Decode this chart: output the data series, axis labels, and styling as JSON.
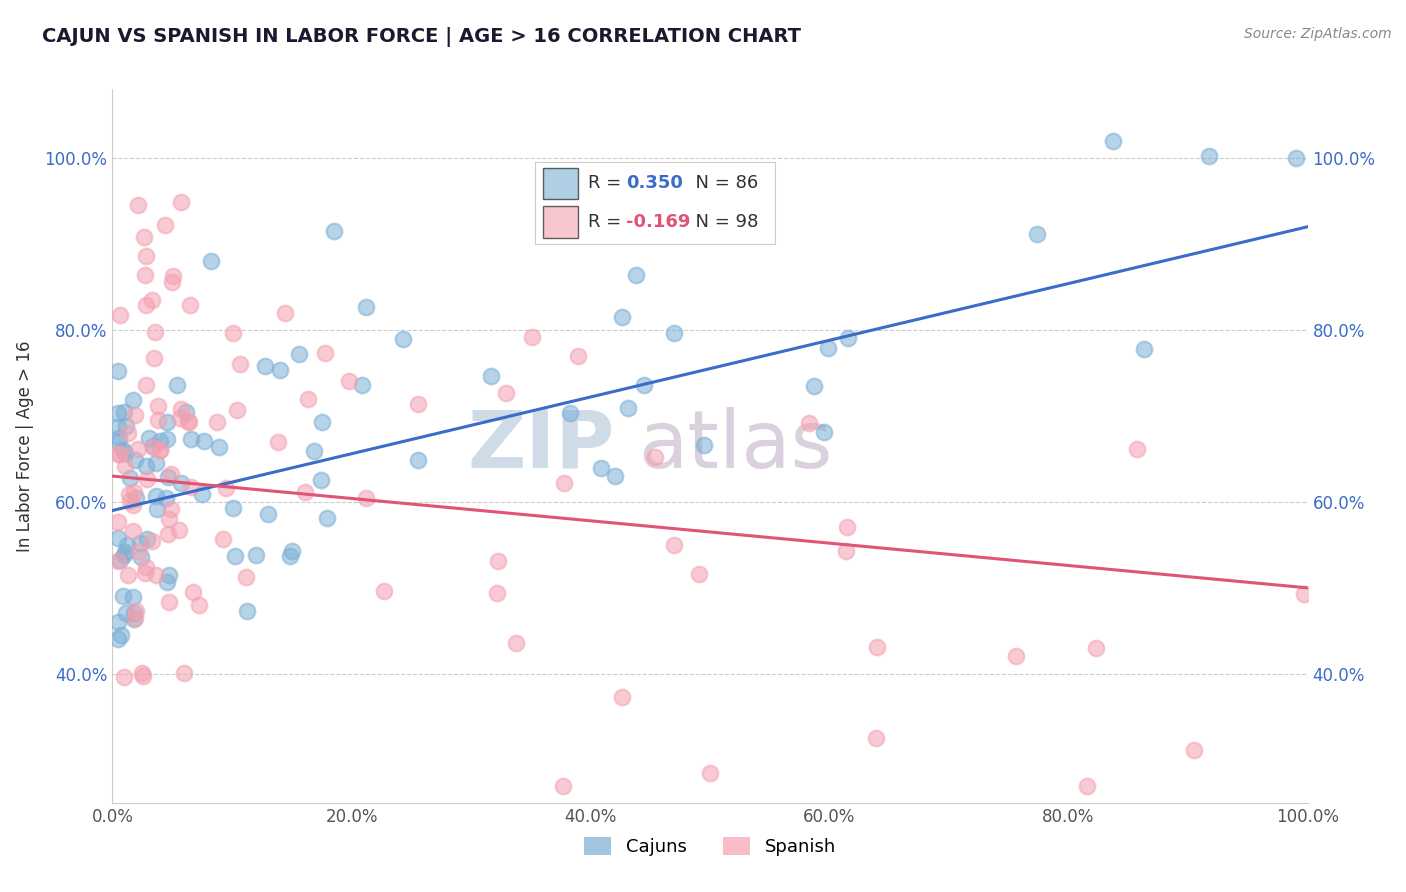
{
  "title": "CAJUN VS SPANISH IN LABOR FORCE | AGE > 16 CORRELATION CHART",
  "source": "Source: ZipAtlas.com",
  "ylabel": "In Labor Force | Age > 16",
  "xlim": [
    0.0,
    1.0
  ],
  "ylim": [
    0.25,
    1.08
  ],
  "xticks": [
    0.0,
    0.2,
    0.4,
    0.6,
    0.8,
    1.0
  ],
  "yticks": [
    0.4,
    0.6,
    0.8,
    1.0
  ],
  "xticklabels": [
    "0.0%",
    "20.0%",
    "40.0%",
    "60.0%",
    "80.0%",
    "100.0%"
  ],
  "yticklabels": [
    "40.0%",
    "60.0%",
    "80.0%",
    "100.0%"
  ],
  "cajun_R": 0.35,
  "cajun_N": 86,
  "spanish_R": -0.169,
  "spanish_N": 98,
  "cajun_color": "#7BAFD4",
  "spanish_color": "#F4A0B0",
  "cajun_line_color": "#3A6CC8",
  "spanish_line_color": "#E05575",
  "background_color": "#ffffff",
  "grid_color": "#cccccc",
  "title_color": "#1a1a2e",
  "watermark_zip": "ZIP",
  "watermark_atlas": "atlas",
  "watermark_color_zip": "#c5d5e8",
  "watermark_color_atlas": "#d8c8d8"
}
